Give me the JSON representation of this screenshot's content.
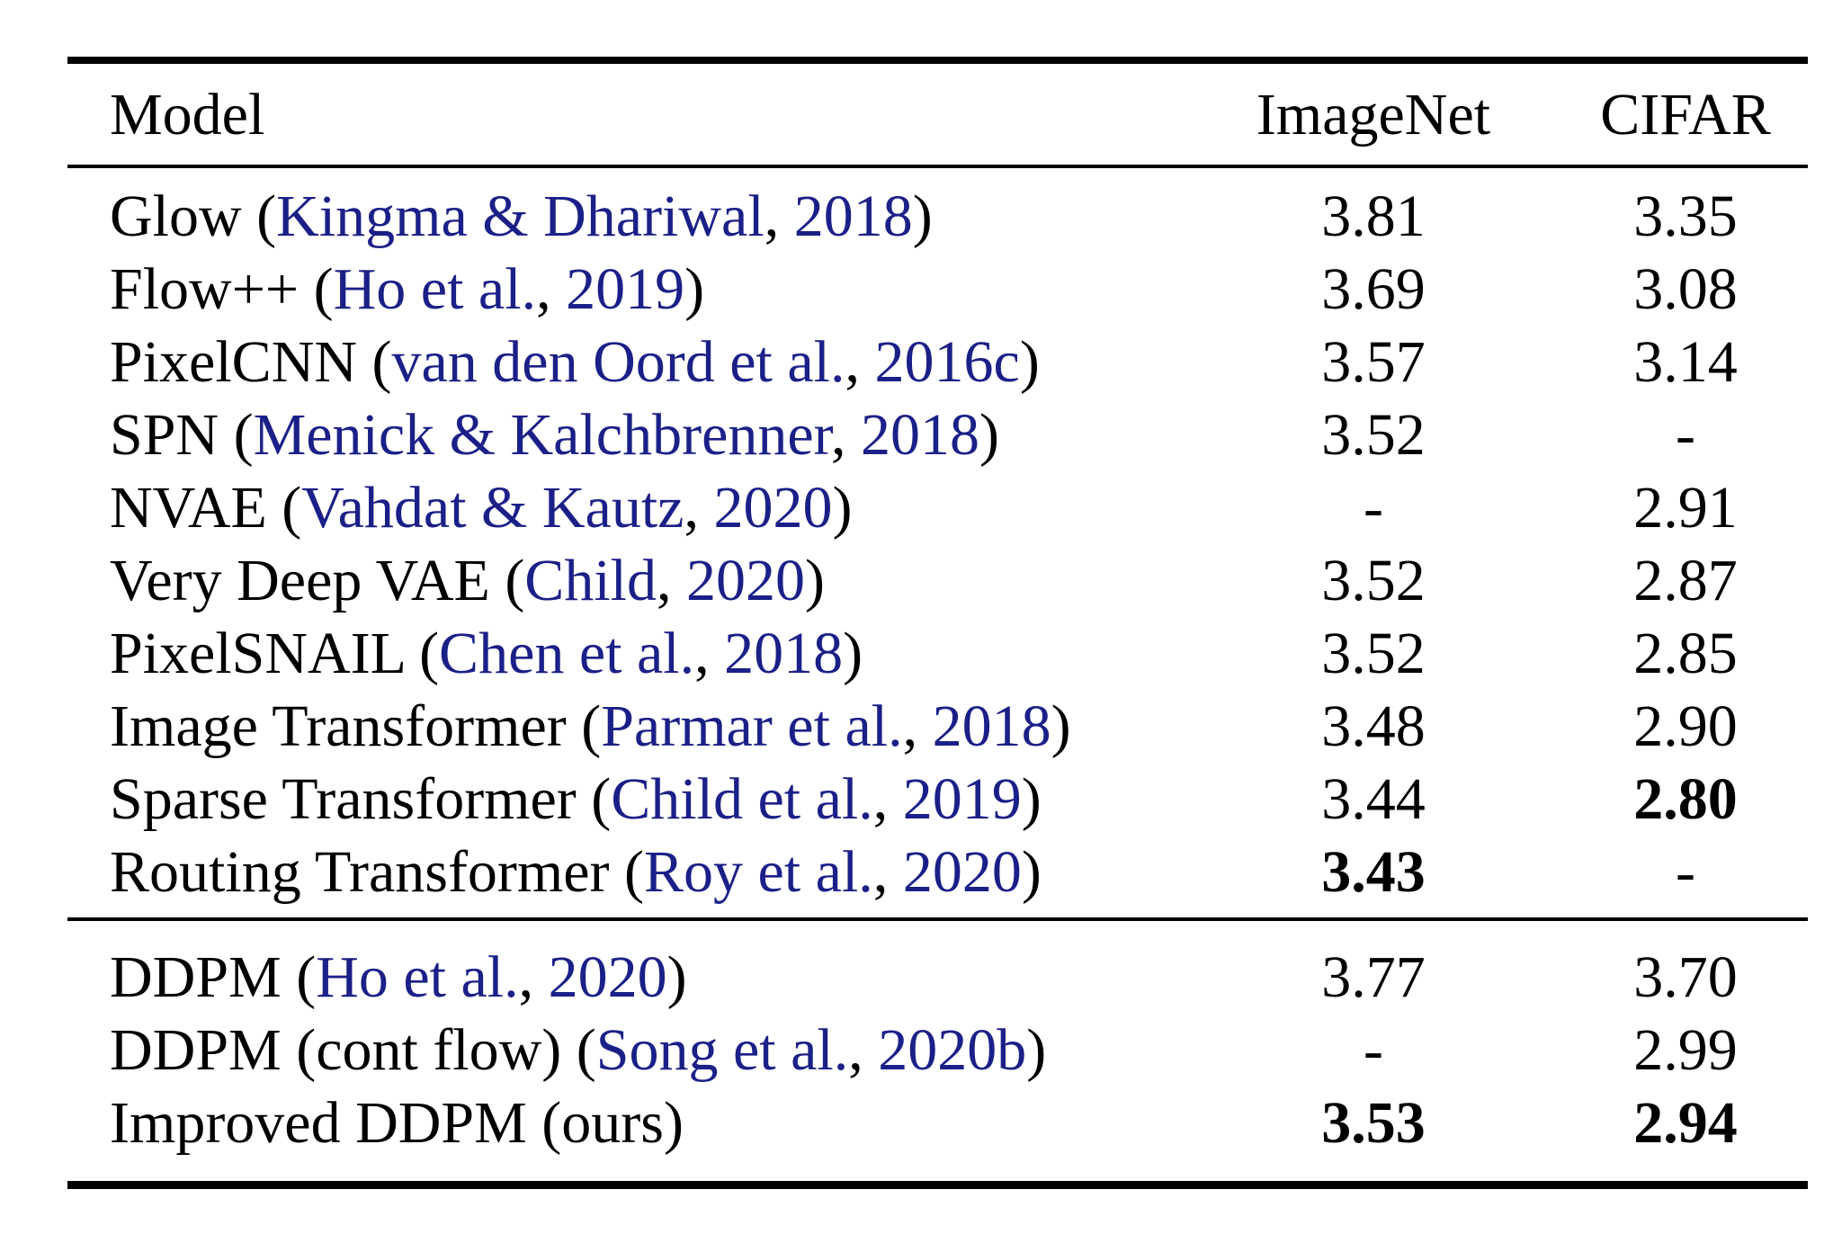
{
  "table": {
    "columns": {
      "model": "Model",
      "imagenet": "ImageNet",
      "cifar": "CIFAR"
    },
    "groups": [
      {
        "rows": [
          {
            "model": "Glow",
            "cite": {
              "authors": "Kingma & Dhariwal",
              "year": "2018"
            },
            "imagenet": "3.81",
            "imagenet_bold": false,
            "cifar": "3.35",
            "cifar_bold": false
          },
          {
            "model": "Flow++",
            "cite": {
              "authors": "Ho et al.",
              "year": "2019"
            },
            "imagenet": "3.69",
            "imagenet_bold": false,
            "cifar": "3.08",
            "cifar_bold": false
          },
          {
            "model": "PixelCNN",
            "cite": {
              "authors": "van den Oord et al.",
              "year": "2016c"
            },
            "imagenet": "3.57",
            "imagenet_bold": false,
            "cifar": "3.14",
            "cifar_bold": false
          },
          {
            "model": "SPN",
            "cite": {
              "authors": "Menick & Kalchbrenner",
              "year": "2018"
            },
            "imagenet": "3.52",
            "imagenet_bold": false,
            "cifar": "-",
            "cifar_bold": false
          },
          {
            "model": "NVAE",
            "cite": {
              "authors": "Vahdat & Kautz",
              "year": "2020"
            },
            "imagenet": "-",
            "imagenet_bold": false,
            "cifar": "2.91",
            "cifar_bold": false
          },
          {
            "model": "Very Deep VAE",
            "cite": {
              "authors": "Child",
              "year": "2020"
            },
            "imagenet": "3.52",
            "imagenet_bold": false,
            "cifar": "2.87",
            "cifar_bold": false
          },
          {
            "model": "PixelSNAIL",
            "cite": {
              "authors": "Chen et al.",
              "year": "2018"
            },
            "imagenet": "3.52",
            "imagenet_bold": false,
            "cifar": "2.85",
            "cifar_bold": false
          },
          {
            "model": "Image Transformer",
            "cite": {
              "authors": "Parmar et al.",
              "year": "2018"
            },
            "imagenet": "3.48",
            "imagenet_bold": false,
            "cifar": "2.90",
            "cifar_bold": false
          },
          {
            "model": "Sparse Transformer",
            "cite": {
              "authors": "Child et al.",
              "year": "2019"
            },
            "imagenet": "3.44",
            "imagenet_bold": false,
            "cifar": "2.80",
            "cifar_bold": true
          },
          {
            "model": "Routing Transformer",
            "cite": {
              "authors": "Roy et al.",
              "year": "2020"
            },
            "imagenet": "3.43",
            "imagenet_bold": true,
            "cifar": "-",
            "cifar_bold": false
          }
        ]
      },
      {
        "rows": [
          {
            "model": "DDPM",
            "cite": {
              "authors": "Ho et al.",
              "year": "2020"
            },
            "imagenet": "3.77",
            "imagenet_bold": false,
            "cifar": "3.70",
            "cifar_bold": false
          },
          {
            "model": "DDPM (cont flow)",
            "cite": {
              "authors": "Song et al.",
              "year": "2020b"
            },
            "imagenet": "-",
            "imagenet_bold": false,
            "cifar": "2.99",
            "cifar_bold": false
          },
          {
            "model": "Improved DDPM (ours)",
            "cite": null,
            "imagenet": "3.53",
            "imagenet_bold": true,
            "cifar": "2.94",
            "cifar_bold": true
          }
        ]
      }
    ]
  },
  "colors": {
    "text": "#000000",
    "citation": "#1b2088",
    "rule": "#000000",
    "background": "#ffffff"
  }
}
